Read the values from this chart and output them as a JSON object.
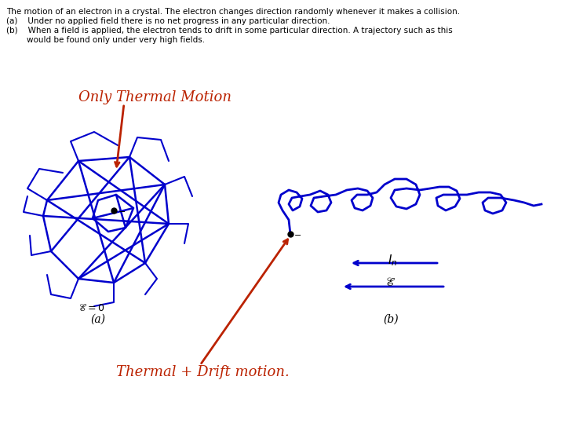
{
  "title_text": "The motion of an electron in a crystal. The electron changes direction randomly whenever it makes a collision.",
  "line1": "(a)    Under no applied field there is no net progress in any particular direction.",
  "line2a": "(b)    When a field is applied, the electron tends to drift in some particular direction. A trajectory such as this",
  "line2b": "        would be found only under very high fields.",
  "label_only_thermal": "Only Thermal Motion",
  "label_thermal_drift": "Thermal + Drift motion.",
  "label_a": "(a)",
  "label_b": "(b)",
  "blue": "#0000CC",
  "red": "#BB2200",
  "black": "#000000",
  "white": "#FFFFFF",
  "fig_w": 7.2,
  "fig_h": 5.4,
  "dpi": 100
}
